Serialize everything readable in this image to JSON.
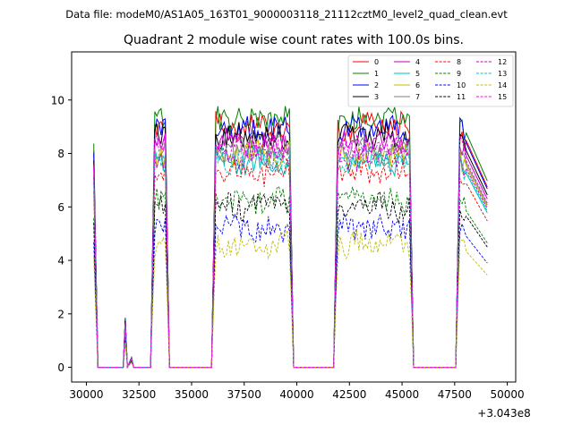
{
  "chart_data": {
    "type": "line",
    "suptitle": "Data file: modeM0/AS1A05_163T01_9000003118_21112cztM0_level2_quad_clean.evt",
    "title": "Quadrant 2 module wise count rates with 100.0s bins.",
    "xlabel": "",
    "ylabel": "",
    "x_offset_label": "+3.043e8",
    "xlim": [
      29300,
      50400
    ],
    "ylim": [
      -0.55,
      11.8
    ],
    "x_ticks": [
      30000,
      32500,
      35000,
      37500,
      40000,
      42500,
      45000,
      47500,
      50000
    ],
    "x_tick_labels": [
      "30000",
      "32500",
      "35000",
      "37500",
      "40000",
      "42500",
      "45000",
      "47500",
      "50000"
    ],
    "y_ticks": [
      0,
      2,
      4,
      6,
      8,
      10
    ],
    "y_tick_labels": [
      "0",
      "2",
      "4",
      "6",
      "8",
      "10"
    ],
    "x_start": 30350,
    "bin": 100,
    "n_bins": 188,
    "profile": [
      {
        "x": 30350,
        "level": 0.9
      },
      {
        "x": 30550,
        "level": 0
      },
      {
        "x": 31750,
        "level": 0
      },
      {
        "x": 31850,
        "level": 0.2
      },
      {
        "x": 31950,
        "level": 0
      },
      {
        "x": 32150,
        "level": 0.04
      },
      {
        "x": 32250,
        "level": 0
      },
      {
        "x": 33050,
        "level": 0
      },
      {
        "x": 33250,
        "level": 1
      },
      {
        "x": 33750,
        "level": 1
      },
      {
        "x": 33950,
        "level": 0
      },
      {
        "x": 35950,
        "level": 0
      },
      {
        "x": 36150,
        "level": 1
      },
      {
        "x": 39650,
        "level": 1
      },
      {
        "x": 39850,
        "level": 0
      },
      {
        "x": 41750,
        "level": 0
      },
      {
        "x": 41950,
        "level": 1
      },
      {
        "x": 45350,
        "level": 1
      },
      {
        "x": 45550,
        "level": 0
      },
      {
        "x": 47550,
        "level": 0
      },
      {
        "x": 47750,
        "level": 1
      },
      {
        "x": 49050,
        "level": 0.75
      }
    ],
    "series": [
      {
        "name": "0",
        "color": "#ff0000",
        "dash": "solid",
        "mean": 9.0
      },
      {
        "name": "1",
        "color": "#008000",
        "dash": "solid",
        "mean": 9.3
      },
      {
        "name": "2",
        "color": "#0000ff",
        "dash": "solid",
        "mean": 8.9
      },
      {
        "name": "3",
        "color": "#000000",
        "dash": "solid",
        "mean": 8.6
      },
      {
        "name": "4",
        "color": "#bf00bf",
        "dash": "solid",
        "mean": 8.4
      },
      {
        "name": "5",
        "color": "#00bfbf",
        "dash": "solid",
        "mean": 7.7
      },
      {
        "name": "6",
        "color": "#bfbf00",
        "dash": "solid",
        "mean": 8.0
      },
      {
        "name": "7",
        "color": "#808080",
        "dash": "solid",
        "mean": 8.1
      },
      {
        "name": "8",
        "color": "#ff0000",
        "dash": "dashed",
        "mean": 7.3
      },
      {
        "name": "9",
        "color": "#008000",
        "dash": "dashed",
        "mean": 6.2
      },
      {
        "name": "10",
        "color": "#0000ff",
        "dash": "dashed",
        "mean": 5.2
      },
      {
        "name": "11",
        "color": "#000000",
        "dash": "dashed",
        "mean": 6.0
      },
      {
        "name": "12",
        "color": "#bf00bf",
        "dash": "dashed",
        "mean": 7.9
      },
      {
        "name": "13",
        "color": "#00bfbf",
        "dash": "dashed",
        "mean": 7.8
      },
      {
        "name": "14",
        "color": "#bfbf00",
        "dash": "dashed",
        "mean": 4.6
      },
      {
        "name": "15",
        "color": "#ff00ff",
        "dash": "dashed",
        "mean": 8.2
      }
    ],
    "legend_position": "upper right",
    "legend_columns": 4,
    "grid": false
  }
}
